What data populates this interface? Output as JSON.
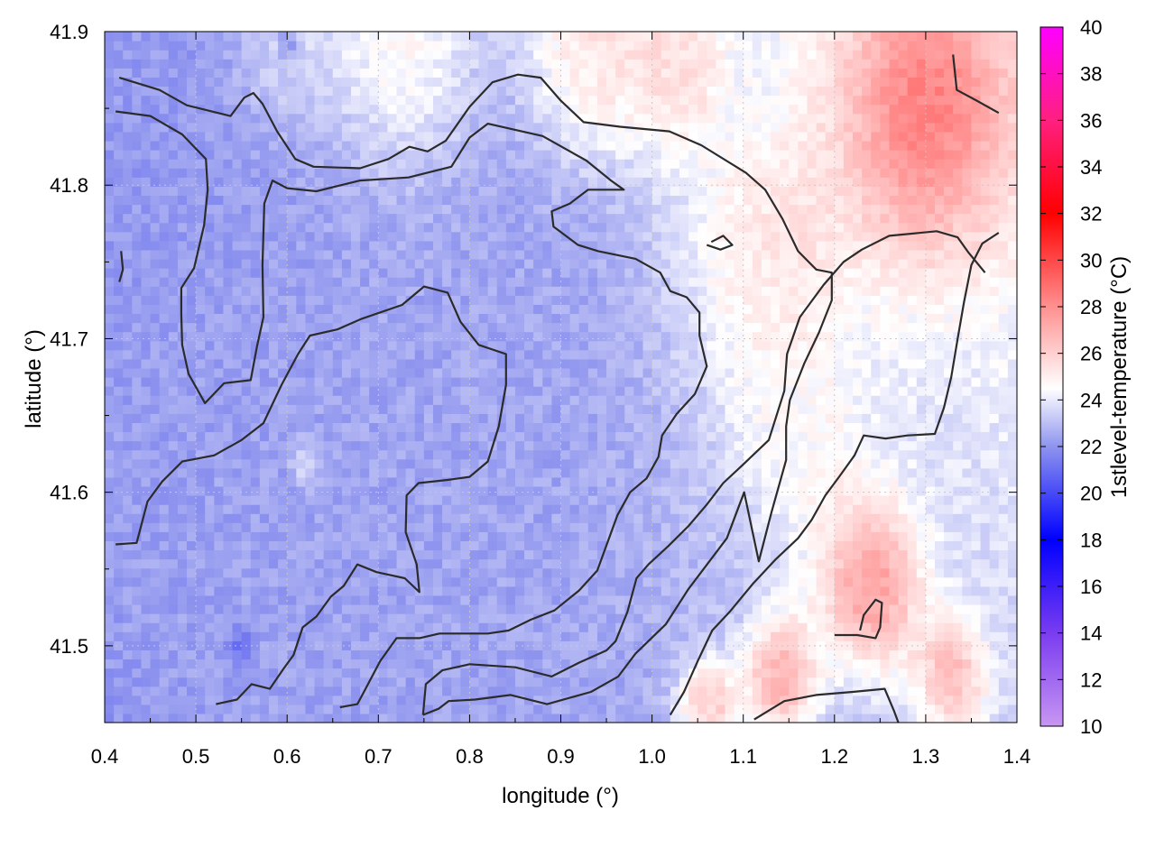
{
  "chart_data": {
    "type": "heatmap",
    "title": "",
    "xlabel": "longitude (°)",
    "ylabel": "latitude (°)",
    "colorbar_label": "1stlevel-temperature (°C)",
    "xlim": [
      0.4,
      1.4
    ],
    "ylim": [
      41.45,
      41.9
    ],
    "xticks": [
      "0.4",
      "0.5",
      "0.6",
      "0.7",
      "0.8",
      "0.9",
      "1.0",
      "1.1",
      "1.2",
      "1.3",
      "1.4"
    ],
    "yticks": [
      "41.5",
      "41.6",
      "41.7",
      "41.8",
      "41.9"
    ],
    "ytick_values": [
      41.5,
      41.6,
      41.7,
      41.8,
      41.9
    ],
    "colorbar_range": [
      10,
      40
    ],
    "colorbar_ticks": [
      "10",
      "12",
      "14",
      "16",
      "18",
      "20",
      "22",
      "24",
      "26",
      "28",
      "30",
      "32",
      "34",
      "36",
      "38",
      "40"
    ],
    "colorbar_stops": [
      {
        "value": 10,
        "color": "#c896f2"
      },
      {
        "value": 14,
        "color": "#7a3cf0"
      },
      {
        "value": 18,
        "color": "#0000ff"
      },
      {
        "value": 22,
        "color": "#8e94ee"
      },
      {
        "value": 24.5,
        "color": "#ffffff"
      },
      {
        "value": 28,
        "color": "#ff9090"
      },
      {
        "value": 32,
        "color": "#ff0000"
      },
      {
        "value": 36,
        "color": "#ff2080"
      },
      {
        "value": 40,
        "color": "#ff00ff"
      }
    ],
    "grid": true,
    "field_regions": [
      {
        "lon": 0.56,
        "lat": 41.64,
        "temp": 22.2,
        "radius": 0.45
      },
      {
        "lon": 0.75,
        "lat": 41.72,
        "temp": 22.6,
        "radius": 0.35
      },
      {
        "lon": 0.48,
        "lat": 41.82,
        "temp": 22.0,
        "radius": 0.2
      },
      {
        "lon": 0.6,
        "lat": 41.89,
        "temp": 25.5,
        "radius": 0.06
      },
      {
        "lon": 0.72,
        "lat": 41.89,
        "temp": 27.5,
        "radius": 0.09
      },
      {
        "lon": 0.93,
        "lat": 41.89,
        "temp": 27.0,
        "radius": 0.08
      },
      {
        "lon": 1.02,
        "lat": 41.88,
        "temp": 26.5,
        "radius": 0.07
      },
      {
        "lon": 1.3,
        "lat": 41.85,
        "temp": 28.5,
        "radius": 0.12
      },
      {
        "lon": 1.12,
        "lat": 41.76,
        "temp": 25.8,
        "radius": 0.1
      },
      {
        "lon": 1.24,
        "lat": 41.54,
        "temp": 27.6,
        "radius": 0.07
      },
      {
        "lon": 1.14,
        "lat": 41.48,
        "temp": 27.2,
        "radius": 0.05
      },
      {
        "lon": 1.06,
        "lat": 41.46,
        "temp": 26.5,
        "radius": 0.04
      },
      {
        "lon": 1.33,
        "lat": 41.48,
        "temp": 26.5,
        "radius": 0.05
      },
      {
        "lon": 1.16,
        "lat": 41.64,
        "temp": 24.8,
        "radius": 0.1
      },
      {
        "lon": 0.62,
        "lat": 41.62,
        "temp": 26.5,
        "radius": 0.015
      },
      {
        "lon": 0.6,
        "lat": 41.89,
        "temp": 17.5,
        "radius": 0.012
      },
      {
        "lon": 0.55,
        "lat": 41.5,
        "temp": 19.5,
        "radius": 0.015
      }
    ],
    "contours": [
      {
        "points": [
          [
            0.416,
            41.87
          ],
          [
            0.46,
            41.862
          ],
          [
            0.49,
            41.852
          ],
          [
            0.538,
            41.845
          ],
          [
            0.553,
            41.857
          ],
          [
            0.563,
            41.86
          ],
          [
            0.573,
            41.853
          ],
          [
            0.589,
            41.835
          ],
          [
            0.609,
            41.817
          ],
          [
            0.629,
            41.812
          ],
          [
            0.68,
            41.811
          ],
          [
            0.711,
            41.817
          ],
          [
            0.734,
            41.825
          ],
          [
            0.754,
            41.822
          ],
          [
            0.774,
            41.829
          ],
          [
            0.8,
            41.851
          ],
          [
            0.825,
            41.867
          ],
          [
            0.853,
            41.872
          ],
          [
            0.878,
            41.87
          ],
          [
            0.9,
            41.855
          ],
          [
            0.925,
            41.841
          ],
          [
            0.965,
            41.838
          ],
          [
            1.019,
            41.835
          ],
          [
            1.054,
            41.826
          ],
          [
            1.103,
            41.808
          ],
          [
            1.124,
            41.797
          ],
          [
            1.143,
            41.778
          ],
          [
            1.16,
            41.757
          ],
          [
            1.18,
            41.745
          ],
          [
            1.197,
            41.743
          ],
          [
            1.197,
            41.725
          ],
          [
            1.183,
            41.704
          ],
          [
            1.167,
            41.684
          ],
          [
            1.151,
            41.66
          ],
          [
            1.147,
            41.643
          ],
          [
            1.147,
            41.621
          ],
          [
            1.131,
            41.587
          ],
          [
            1.117,
            41.555
          ],
          [
            1.101,
            41.6
          ],
          [
            1.082,
            41.57
          ],
          [
            1.04,
            41.537
          ],
          [
            1.015,
            41.514
          ],
          [
            0.982,
            41.495
          ],
          [
            0.963,
            41.48
          ],
          [
            0.933,
            41.47
          ],
          [
            0.885,
            41.462
          ],
          [
            0.845,
            41.468
          ],
          [
            0.806,
            41.465
          ],
          [
            0.777,
            41.464
          ],
          [
            0.766,
            41.459
          ],
          [
            0.749,
            41.455
          ]
        ]
      },
      {
        "points": [
          [
            0.412,
            41.848
          ],
          [
            0.45,
            41.845
          ],
          [
            0.485,
            41.833
          ],
          [
            0.511,
            41.817
          ],
          [
            0.513,
            41.797
          ],
          [
            0.509,
            41.774
          ],
          [
            0.498,
            41.746
          ],
          [
            0.484,
            41.733
          ],
          [
            0.484,
            41.716
          ],
          [
            0.485,
            41.696
          ],
          [
            0.492,
            41.677
          ],
          [
            0.51,
            41.658
          ],
          [
            0.531,
            41.671
          ],
          [
            0.56,
            41.673
          ],
          [
            0.567,
            41.695
          ],
          [
            0.574,
            41.714
          ],
          [
            0.573,
            41.748
          ],
          [
            0.575,
            41.788
          ],
          [
            0.584,
            41.803
          ],
          [
            0.6,
            41.798
          ],
          [
            0.632,
            41.796
          ],
          [
            0.68,
            41.803
          ],
          [
            0.733,
            41.805
          ],
          [
            0.78,
            41.812
          ],
          [
            0.8,
            41.831
          ],
          [
            0.82,
            41.84
          ],
          [
            0.88,
            41.832
          ],
          [
            0.928,
            41.816
          ],
          [
            0.955,
            41.803
          ],
          [
            0.969,
            41.797
          ],
          [
            0.93,
            41.797
          ],
          [
            0.91,
            41.788
          ],
          [
            0.89,
            41.783
          ],
          [
            0.892,
            41.773
          ],
          [
            0.919,
            41.761
          ],
          [
            0.941,
            41.757
          ],
          [
            0.982,
            41.752
          ],
          [
            1.009,
            41.743
          ],
          [
            1.02,
            41.731
          ],
          [
            1.038,
            41.727
          ],
          [
            1.052,
            41.717
          ],
          [
            1.052,
            41.702
          ],
          [
            1.06,
            41.682
          ],
          [
            1.047,
            41.664
          ],
          [
            1.027,
            41.651
          ],
          [
            1.011,
            41.637
          ],
          [
            1.007,
            41.623
          ],
          [
            0.994,
            41.609
          ],
          [
            0.976,
            41.6
          ],
          [
            0.962,
            41.585
          ],
          [
            0.951,
            41.567
          ],
          [
            0.94,
            41.549
          ],
          [
            0.92,
            41.536
          ],
          [
            0.893,
            41.523
          ],
          [
            0.867,
            41.517
          ],
          [
            0.843,
            41.51
          ],
          [
            0.82,
            41.508
          ],
          [
            0.767,
            41.508
          ],
          [
            0.745,
            41.505
          ],
          [
            0.72,
            41.505
          ],
          [
            0.702,
            41.49
          ],
          [
            0.686,
            41.472
          ],
          [
            0.677,
            41.462
          ],
          [
            0.658,
            41.46
          ]
        ]
      },
      {
        "points": [
          [
            0.412,
            41.566
          ],
          [
            0.435,
            41.567
          ],
          [
            0.447,
            41.594
          ],
          [
            0.463,
            41.607
          ],
          [
            0.485,
            41.62
          ],
          [
            0.52,
            41.624
          ],
          [
            0.55,
            41.634
          ],
          [
            0.574,
            41.645
          ],
          [
            0.594,
            41.67
          ],
          [
            0.612,
            41.69
          ],
          [
            0.625,
            41.702
          ],
          [
            0.655,
            41.706
          ],
          [
            0.682,
            41.713
          ],
          [
            0.726,
            41.722
          ],
          [
            0.75,
            41.734
          ],
          [
            0.776,
            41.73
          ],
          [
            0.79,
            41.711
          ],
          [
            0.81,
            41.696
          ],
          [
            0.84,
            41.69
          ],
          [
            0.84,
            41.67
          ],
          [
            0.832,
            41.643
          ],
          [
            0.82,
            41.62
          ],
          [
            0.8,
            41.61
          ],
          [
            0.776,
            41.608
          ],
          [
            0.744,
            41.606
          ],
          [
            0.731,
            41.598
          ],
          [
            0.73,
            41.574
          ],
          [
            0.742,
            41.553
          ],
          [
            0.745,
            41.535
          ],
          [
            0.729,
            41.544
          ],
          [
            0.698,
            41.548
          ],
          [
            0.677,
            41.553
          ],
          [
            0.662,
            41.539
          ],
          [
            0.648,
            41.532
          ],
          [
            0.632,
            41.519
          ],
          [
            0.617,
            41.512
          ],
          [
            0.607,
            41.494
          ],
          [
            0.596,
            41.485
          ],
          [
            0.581,
            41.472
          ],
          [
            0.561,
            41.475
          ],
          [
            0.545,
            41.465
          ],
          [
            0.522,
            41.462
          ]
        ]
      },
      {
        "points": [
          [
            0.749,
            41.455
          ],
          [
            0.752,
            41.475
          ],
          [
            0.77,
            41.484
          ],
          [
            0.8,
            41.488
          ],
          [
            0.85,
            41.486
          ],
          [
            0.89,
            41.48
          ],
          [
            0.92,
            41.489
          ],
          [
            0.95,
            41.497
          ],
          [
            0.96,
            41.503
          ],
          [
            0.973,
            41.522
          ],
          [
            0.983,
            41.544
          ],
          [
            0.996,
            41.553
          ],
          [
            1.018,
            41.565
          ],
          [
            1.04,
            41.578
          ],
          [
            1.06,
            41.592
          ],
          [
            1.078,
            41.606
          ],
          [
            1.098,
            41.617
          ],
          [
            1.128,
            41.634
          ],
          [
            1.145,
            41.666
          ],
          [
            1.148,
            41.69
          ],
          [
            1.162,
            41.714
          ],
          [
            1.188,
            41.735
          ],
          [
            1.21,
            41.75
          ],
          [
            1.23,
            41.758
          ],
          [
            1.26,
            41.767
          ],
          [
            1.312,
            41.77
          ],
          [
            1.335,
            41.766
          ],
          [
            1.347,
            41.756
          ],
          [
            1.365,
            41.743
          ]
        ]
      },
      {
        "points": [
          [
            1.02,
            41.455
          ],
          [
            1.035,
            41.47
          ],
          [
            1.05,
            41.49
          ],
          [
            1.066,
            41.51
          ],
          [
            1.085,
            41.522
          ],
          [
            1.11,
            41.54
          ],
          [
            1.135,
            41.556
          ],
          [
            1.16,
            41.57
          ],
          [
            1.175,
            41.582
          ],
          [
            1.19,
            41.598
          ],
          [
            1.205,
            41.61
          ],
          [
            1.222,
            41.624
          ],
          [
            1.232,
            41.637
          ],
          [
            1.256,
            41.635
          ],
          [
            1.28,
            41.637
          ],
          [
            1.31,
            41.638
          ],
          [
            1.32,
            41.655
          ],
          [
            1.328,
            41.675
          ],
          [
            1.335,
            41.7
          ],
          [
            1.342,
            41.724
          ],
          [
            1.35,
            41.748
          ],
          [
            1.362,
            41.762
          ],
          [
            1.38,
            41.769
          ]
        ]
      },
      {
        "points": [
          [
            1.112,
            41.452
          ],
          [
            1.145,
            41.464
          ],
          [
            1.18,
            41.468
          ],
          [
            1.22,
            41.47
          ],
          [
            1.255,
            41.472
          ],
          [
            1.265,
            41.458
          ],
          [
            1.27,
            41.45
          ]
        ]
      },
      {
        "points": [
          [
            1.2,
            41.507
          ],
          [
            1.225,
            41.507
          ],
          [
            1.245,
            41.505
          ],
          [
            1.25,
            41.512
          ],
          [
            1.252,
            41.528
          ],
          [
            1.245,
            41.53
          ],
          [
            1.232,
            41.52
          ],
          [
            1.228,
            41.51
          ]
        ]
      },
      {
        "points": [
          [
            1.065,
            41.763
          ],
          [
            1.078,
            41.767
          ],
          [
            1.088,
            41.761
          ],
          [
            1.075,
            41.758
          ],
          [
            1.06,
            41.761
          ]
        ]
      },
      {
        "points": [
          [
            0.418,
            41.757
          ],
          [
            0.42,
            41.745
          ],
          [
            0.416,
            41.737
          ]
        ]
      },
      {
        "points": [
          [
            1.33,
            41.885
          ],
          [
            1.334,
            41.862
          ],
          [
            1.356,
            41.855
          ],
          [
            1.38,
            41.847
          ]
        ]
      }
    ]
  }
}
